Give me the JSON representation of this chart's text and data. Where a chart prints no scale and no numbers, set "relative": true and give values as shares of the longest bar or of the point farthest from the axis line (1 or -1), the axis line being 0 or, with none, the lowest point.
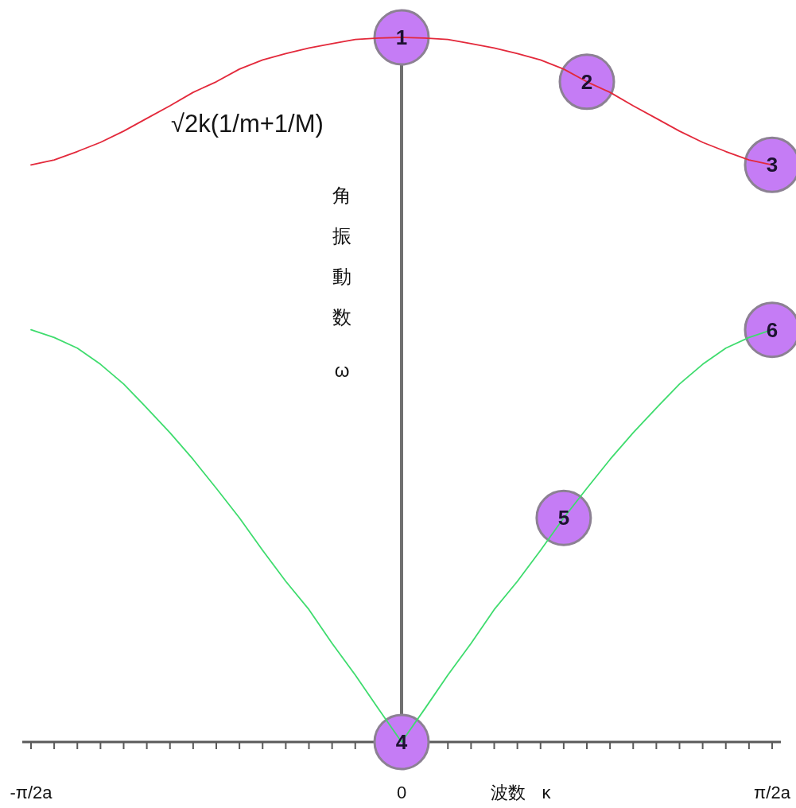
{
  "chart_data": {
    "type": "line",
    "relative": true,
    "xlabel": "波数 κ",
    "ylabel": "角振動数 ω",
    "categories": [
      "-π/2a",
      null,
      null,
      null,
      null,
      null,
      null,
      null,
      null,
      null,
      null,
      null,
      null,
      null,
      null,
      null,
      "0",
      null,
      null,
      null,
      null,
      null,
      null,
      null,
      null,
      null,
      null,
      null,
      null,
      null,
      null,
      null,
      "π/2a"
    ],
    "ref_lines": [
      {
        "axis": "x",
        "value": "0",
        "color": "#707070"
      }
    ],
    "annotations": [
      "√2k(1/m+1/M)",
      {
        "text": "1",
        "x": "0",
        "y": 1
      },
      {
        "text": "2",
        "y": 0.937
      },
      {
        "text": "3",
        "x": "π/2a",
        "y": 0.819
      },
      {
        "text": "4",
        "x": "0",
        "y": 0
      },
      {
        "text": "5",
        "y": 0.318
      },
      {
        "text": "6",
        "x": "π/2a",
        "y": 0.585
      }
    ],
    "series": [
      {
        "color": "#e3293b",
        "values": [
          0.819,
          0.826,
          0.838,
          0.851,
          0.867,
          0.885,
          0.903,
          0.922,
          0.937,
          0.955,
          0.968,
          0.977,
          0.985,
          0.991,
          0.997,
          0.999,
          1,
          0.999,
          0.997,
          0.991,
          0.985,
          0.977,
          0.968,
          0.955,
          0.937,
          0.922,
          0.903,
          0.885,
          0.867,
          0.851,
          0.838,
          0.826,
          0.819
        ]
      },
      {
        "color": "#3fdc6e",
        "values": [
          0.585,
          0.574,
          0.559,
          0.536,
          0.508,
          0.474,
          0.439,
          0.401,
          0.36,
          0.318,
          0.272,
          0.228,
          0.188,
          0.14,
          0.095,
          0.047,
          0,
          0.047,
          0.095,
          0.14,
          0.188,
          0.228,
          0.272,
          0.318,
          0.36,
          0.401,
          0.439,
          0.474,
          0.508,
          0.536,
          0.559,
          0.574,
          0.585
        ]
      },
      {
        "type": "scatter",
        "marker": "circle",
        "color": "#c57cf5",
        "values": [
          null,
          null,
          null,
          null,
          null,
          null,
          null,
          null,
          null,
          null,
          null,
          null,
          null,
          null,
          null,
          null,
          1,
          null,
          null,
          null,
          null,
          null,
          null,
          null,
          0.937,
          null,
          null,
          null,
          null,
          null,
          null,
          null,
          0.819
        ]
      },
      {
        "type": "scatter",
        "marker": "circle",
        "color": "#c57cf5",
        "values": [
          null,
          null,
          null,
          null,
          null,
          null,
          null,
          null,
          null,
          null,
          null,
          null,
          null,
          null,
          null,
          null,
          0,
          null,
          null,
          null,
          null,
          null,
          null,
          0.318,
          null,
          null,
          null,
          null,
          null,
          null,
          null,
          null,
          0.585
        ]
      }
    ]
  }
}
